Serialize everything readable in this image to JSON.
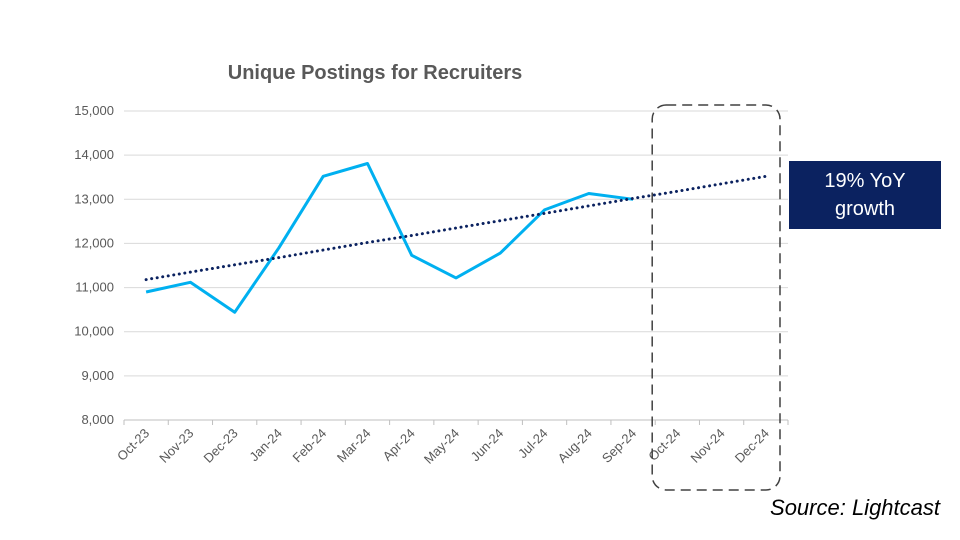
{
  "chart_data": {
    "type": "line",
    "title": "Unique Postings for Recruiters",
    "xlabel": "",
    "ylabel": "",
    "categories": [
      "Oct-23",
      "Nov-23",
      "Dec-23",
      "Jan-24",
      "Feb-24",
      "Mar-24",
      "Apr-24",
      "May-24",
      "Jun-24",
      "Jul-24",
      "Aug-24",
      "Sep-24",
      "Oct-24",
      "Nov-24",
      "Dec-24"
    ],
    "ylim": [
      8000,
      15000
    ],
    "yticks": [
      8000,
      9000,
      10000,
      11000,
      12000,
      13000,
      14000,
      15000
    ],
    "ytick_labels": [
      "8,000",
      "9,000",
      "10,000",
      "11,000",
      "12,000",
      "13,000",
      "14,000",
      "15,000"
    ],
    "grid": true,
    "series": [
      {
        "style": "solid",
        "color": "#00b0f0",
        "values": [
          10900,
          11120,
          10440,
          11900,
          13520,
          13810,
          11730,
          11220,
          11780,
          12760,
          13130,
          13000,
          null,
          null,
          null
        ]
      },
      {
        "style": "dotted",
        "color": "#0b2260",
        "values": [
          11180,
          11350,
          11515,
          11680,
          11850,
          12020,
          12180,
          12350,
          12515,
          12680,
          12850,
          13020,
          13180,
          13350,
          13520
        ]
      }
    ],
    "highlight_range": [
      "Oct-24",
      "Dec-24"
    ],
    "annotation": "19% YoY growth"
  },
  "source": "Source: Lightcast",
  "colors": {
    "line": "#00b0f0",
    "trend": "#0b2260",
    "callout_bg": "#0b2260",
    "grid": "#d9d9d9"
  }
}
